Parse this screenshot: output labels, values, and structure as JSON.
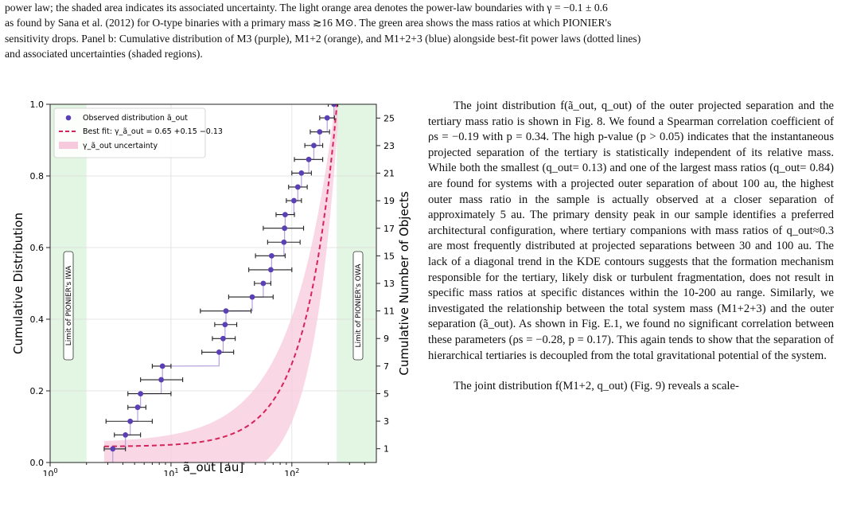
{
  "caption": {
    "line1": "power law; the shaded area indicates its associated uncertainty. The light orange area denotes the power-law boundaries with γ = −0.1 ± 0.6",
    "line2": "as found by Sana et al. (2012) for O-type binaries with a primary mass ≳16 M⊙. The green area shows the mass ratios at which PIONIER's",
    "line3": "sensitivity drops. Panel b: Cumulative distribution of M3 (purple), M1+2 (orange), and M1+2+3 (blue) alongside best-fit power laws (dotted lines)",
    "line4": "and associated uncertainties (shaded regions)."
  },
  "body": {
    "para1": "The joint distribution f(ã_out, q_out) of the outer projected separation and the tertiary mass ratio is shown in Fig. 8. We found a Spearman correlation coefficient of ρs = −0.19 with p = 0.34. The high p-value (p > 0.05) indicates that the instantaneous projected separation of the tertiary is statistically independent of its relative mass. While both the smallest (q_out= 0.13) and one of the largest mass ratios (q_out= 0.84) are found for systems with a projected outer separation of about 100 au, the highest outer mass ratio in the sample is actually observed at a closer separation of approximately 5 au. The primary density peak in our sample identifies a preferred architectural configuration, where tertiary companions with mass ratios of q_out≈0.3 are most frequently distributed at projected separations between 30 and 100 au. The lack of a diagonal trend in the KDE contours suggests that the formation mechanism responsible for the tertiary, likely disk or turbulent fragmentation, does not result in specific mass ratios at specific distances within the 10-200 au range. Similarly, we investigated the relationship between the total system mass (M1+2+3) and the outer separation (ã_out). As shown in Fig. E.1, we found no significant correlation between these parameters (ρs = −0.28, p = 0.17). This again tends to show that the separation of hierarchical tertiaries is decoupled from the total gravitational potential of the system.",
    "para2": "The joint distribution f(M1+2, q_out) (Fig. 9) reveals a scale-"
  },
  "chart_data": {
    "type": "scatter",
    "xlabel": "ã_out [au]",
    "ylabel": "Cumulative Distribution",
    "y2label": "Cumulative Number of Objects",
    "xscale": "log",
    "xlim": [
      1,
      500
    ],
    "ylim": [
      0.0,
      1.0
    ],
    "xticks": [
      "10^0",
      "10^1",
      "10^2"
    ],
    "yticks": [
      "0.0",
      "0.2",
      "0.4",
      "0.6",
      "0.8",
      "1.0"
    ],
    "y2ticks": [
      "1",
      "3",
      "5",
      "7",
      "9",
      "11",
      "13",
      "15",
      "17",
      "19",
      "21",
      "23",
      "25"
    ],
    "grid": true,
    "legend": {
      "position": "upper-left",
      "entries": [
        "Observed distribution ã_out",
        "Best fit: γ_ã_out = 0.65 +0.15 −0.13",
        "γ_ã_out uncertainty"
      ]
    },
    "iwa_label": "Limit of PIONIER's IWA",
    "owa_label": "Limit of PIONIER's OWA",
    "iwa_limit": 2.0,
    "owa_limit": 235,
    "best_fit_gamma": 0.65,
    "colors": {
      "points": "#5b3fb5",
      "fit": "#d6245a",
      "band": "#f7c9dc",
      "green": "#e3f5e3",
      "step": "#b5a0dd"
    },
    "points": [
      {
        "x": 3.3,
        "y": 0.038,
        "lo": 2.8,
        "hi": 4.2
      },
      {
        "x": 4.2,
        "y": 0.077,
        "lo": 3.4,
        "hi": 5.6
      },
      {
        "x": 4.6,
        "y": 0.115,
        "lo": 2.9,
        "hi": 7.0
      },
      {
        "x": 5.3,
        "y": 0.154,
        "lo": 4.4,
        "hi": 6.2
      },
      {
        "x": 5.6,
        "y": 0.192,
        "lo": 4.4,
        "hi": 10.0
      },
      {
        "x": 8.3,
        "y": 0.231,
        "lo": 5.6,
        "hi": 12.5
      },
      {
        "x": 8.5,
        "y": 0.269,
        "lo": 7.0,
        "hi": 10.0
      },
      {
        "x": 25.0,
        "y": 0.308,
        "lo": 18.0,
        "hi": 33.0
      },
      {
        "x": 27.0,
        "y": 0.346,
        "lo": 22.0,
        "hi": 34.0
      },
      {
        "x": 28.0,
        "y": 0.385,
        "lo": 23.0,
        "hi": 35.0
      },
      {
        "x": 28.5,
        "y": 0.423,
        "lo": 17.5,
        "hi": 46.0
      },
      {
        "x": 47.0,
        "y": 0.462,
        "lo": 30.0,
        "hi": 70.0
      },
      {
        "x": 58.0,
        "y": 0.5,
        "lo": 49.0,
        "hi": 67.0
      },
      {
        "x": 67.0,
        "y": 0.538,
        "lo": 44.0,
        "hi": 100.0
      },
      {
        "x": 68.0,
        "y": 0.577,
        "lo": 50.0,
        "hi": 88.0
      },
      {
        "x": 86.0,
        "y": 0.615,
        "lo": 63.0,
        "hi": 117.0
      },
      {
        "x": 87.0,
        "y": 0.654,
        "lo": 58.0,
        "hi": 125.0
      },
      {
        "x": 88.0,
        "y": 0.692,
        "lo": 74.0,
        "hi": 105.0
      },
      {
        "x": 104.0,
        "y": 0.731,
        "lo": 90.0,
        "hi": 120.0
      },
      {
        "x": 112.0,
        "y": 0.769,
        "lo": 94.0,
        "hi": 134.0
      },
      {
        "x": 120.0,
        "y": 0.808,
        "lo": 100.0,
        "hi": 145.0
      },
      {
        "x": 138.0,
        "y": 0.846,
        "lo": 105.0,
        "hi": 180.0
      },
      {
        "x": 152.0,
        "y": 0.885,
        "lo": 128.0,
        "hi": 180.0
      },
      {
        "x": 170.0,
        "y": 0.923,
        "lo": 142.0,
        "hi": 205.0
      },
      {
        "x": 196.0,
        "y": 0.962,
        "lo": 170.0,
        "hi": 225.0
      },
      {
        "x": 223.0,
        "y": 1.0,
        "lo": 200.0,
        "hi": 240.0
      }
    ]
  }
}
